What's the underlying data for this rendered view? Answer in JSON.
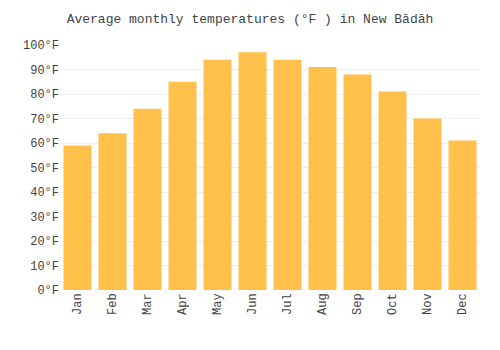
{
  "chart_data": {
    "type": "bar",
    "title": "Average monthly temperatures (°F ) in New Bādāh",
    "categories": [
      "Jan",
      "Feb",
      "Mar",
      "Apr",
      "May",
      "Jun",
      "Jul",
      "Aug",
      "Sep",
      "Oct",
      "Nov",
      "Dec"
    ],
    "values": [
      59,
      64,
      74,
      85,
      94,
      97,
      94,
      91,
      88,
      81,
      70,
      61
    ],
    "color": "#FFC04C",
    "ylim": [
      0,
      100
    ],
    "yticks": [
      {
        "value": 0,
        "label": "0°F"
      },
      {
        "value": 10,
        "label": "10°F"
      },
      {
        "value": 20,
        "label": "20°F"
      },
      {
        "value": 30,
        "label": "30°F"
      },
      {
        "value": 40,
        "label": "40°F"
      },
      {
        "value": 50,
        "label": "50°F"
      },
      {
        "value": 60,
        "label": "60°F"
      },
      {
        "value": 70,
        "label": "70°F"
      },
      {
        "value": 80,
        "label": "80°F"
      },
      {
        "value": 90,
        "label": "90°F"
      },
      {
        "value": 100,
        "label": "100°F"
      }
    ],
    "grid": true
  }
}
